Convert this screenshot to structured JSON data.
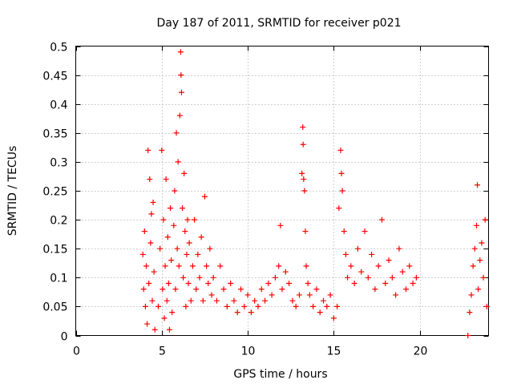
{
  "chart_data": {
    "type": "scatter",
    "title": "Day 187 of 2011, SRMTID for receiver p021",
    "xlabel": "GPS time / hours",
    "ylabel": "SRMTID / TECUs",
    "xlim": [
      0,
      24
    ],
    "ylim": [
      0,
      0.5
    ],
    "x_ticks": [
      0,
      5,
      10,
      15,
      20
    ],
    "y_ticks": [
      0,
      0.05,
      0.1,
      0.15,
      0.2,
      0.25,
      0.3,
      0.35,
      0.4,
      0.45,
      0.5
    ],
    "grid": true,
    "legend": "none",
    "marker": "plus",
    "series": [
      {
        "color": "#ff0000",
        "points": [
          [
            3.9,
            0.14
          ],
          [
            3.95,
            0.08
          ],
          [
            4.0,
            0.18
          ],
          [
            4.05,
            0.05
          ],
          [
            4.1,
            0.12
          ],
          [
            4.15,
            0.02
          ],
          [
            4.2,
            0.32
          ],
          [
            4.25,
            0.09
          ],
          [
            4.3,
            0.27
          ],
          [
            4.35,
            0.16
          ],
          [
            4.4,
            0.21
          ],
          [
            4.45,
            0.06
          ],
          [
            4.5,
            0.23
          ],
          [
            4.55,
            0.11
          ],
          [
            4.6,
            0.01
          ],
          [
            4.8,
            0.05
          ],
          [
            4.9,
            0.15
          ],
          [
            5.0,
            0.32
          ],
          [
            5.05,
            0.08
          ],
          [
            5.1,
            0.2
          ],
          [
            5.15,
            0.03
          ],
          [
            5.2,
            0.12
          ],
          [
            5.25,
            0.27
          ],
          [
            5.3,
            0.06
          ],
          [
            5.35,
            0.17
          ],
          [
            5.4,
            0.09
          ],
          [
            5.45,
            0.01
          ],
          [
            5.5,
            0.22
          ],
          [
            5.55,
            0.13
          ],
          [
            5.6,
            0.04
          ],
          [
            5.7,
            0.19
          ],
          [
            5.75,
            0.25
          ],
          [
            5.8,
            0.08
          ],
          [
            5.85,
            0.35
          ],
          [
            5.9,
            0.15
          ],
          [
            5.95,
            0.3
          ],
          [
            6.0,
            0.12
          ],
          [
            6.05,
            0.38
          ],
          [
            6.1,
            0.49
          ],
          [
            6.12,
            0.45
          ],
          [
            6.15,
            0.42
          ],
          [
            6.2,
            0.22
          ],
          [
            6.25,
            0.1
          ],
          [
            6.3,
            0.28
          ],
          [
            6.35,
            0.18
          ],
          [
            6.4,
            0.05
          ],
          [
            6.45,
            0.14
          ],
          [
            6.5,
            0.2
          ],
          [
            6.55,
            0.09
          ],
          [
            6.6,
            0.16
          ],
          [
            6.7,
            0.06
          ],
          [
            6.8,
            0.12
          ],
          [
            6.9,
            0.2
          ],
          [
            7.0,
            0.08
          ],
          [
            7.1,
            0.14
          ],
          [
            7.2,
            0.1
          ],
          [
            7.3,
            0.17
          ],
          [
            7.4,
            0.06
          ],
          [
            7.5,
            0.24
          ],
          [
            7.6,
            0.12
          ],
          [
            7.7,
            0.09
          ],
          [
            7.8,
            0.15
          ],
          [
            7.9,
            0.07
          ],
          [
            8.0,
            0.1
          ],
          [
            8.2,
            0.06
          ],
          [
            8.4,
            0.12
          ],
          [
            8.6,
            0.08
          ],
          [
            8.8,
            0.05
          ],
          [
            9.0,
            0.09
          ],
          [
            9.2,
            0.06
          ],
          [
            9.4,
            0.04
          ],
          [
            9.6,
            0.08
          ],
          [
            9.8,
            0.05
          ],
          [
            10.0,
            0.07
          ],
          [
            10.2,
            0.04
          ],
          [
            10.4,
            0.06
          ],
          [
            10.6,
            0.05
          ],
          [
            10.8,
            0.08
          ],
          [
            11.0,
            0.06
          ],
          [
            11.2,
            0.09
          ],
          [
            11.4,
            0.07
          ],
          [
            11.6,
            0.1
          ],
          [
            11.8,
            0.12
          ],
          [
            11.9,
            0.19
          ],
          [
            12.0,
            0.08
          ],
          [
            12.2,
            0.11
          ],
          [
            12.4,
            0.09
          ],
          [
            12.6,
            0.06
          ],
          [
            12.8,
            0.05
          ],
          [
            13.0,
            0.07
          ],
          [
            13.15,
            0.28
          ],
          [
            13.2,
            0.36
          ],
          [
            13.22,
            0.33
          ],
          [
            13.25,
            0.27
          ],
          [
            13.3,
            0.25
          ],
          [
            13.35,
            0.18
          ],
          [
            13.4,
            0.12
          ],
          [
            13.5,
            0.09
          ],
          [
            13.6,
            0.07
          ],
          [
            13.8,
            0.05
          ],
          [
            14.0,
            0.08
          ],
          [
            14.2,
            0.04
          ],
          [
            14.4,
            0.06
          ],
          [
            14.6,
            0.05
          ],
          [
            14.8,
            0.07
          ],
          [
            15.0,
            0.03
          ],
          [
            15.2,
            0.05
          ],
          [
            15.3,
            0.22
          ],
          [
            15.4,
            0.32
          ],
          [
            15.45,
            0.28
          ],
          [
            15.5,
            0.25
          ],
          [
            15.6,
            0.18
          ],
          [
            15.7,
            0.14
          ],
          [
            15.8,
            0.1
          ],
          [
            16.0,
            0.12
          ],
          [
            16.2,
            0.09
          ],
          [
            16.4,
            0.15
          ],
          [
            16.6,
            0.11
          ],
          [
            16.8,
            0.18
          ],
          [
            17.0,
            0.1
          ],
          [
            17.2,
            0.14
          ],
          [
            17.4,
            0.08
          ],
          [
            17.6,
            0.12
          ],
          [
            17.8,
            0.2
          ],
          [
            18.0,
            0.09
          ],
          [
            18.2,
            0.13
          ],
          [
            18.4,
            0.1
          ],
          [
            18.6,
            0.07
          ],
          [
            18.8,
            0.15
          ],
          [
            19.0,
            0.11
          ],
          [
            19.2,
            0.08
          ],
          [
            19.4,
            0.12
          ],
          [
            19.6,
            0.09
          ],
          [
            19.8,
            0.1
          ],
          [
            22.8,
            0.0
          ],
          [
            22.9,
            0.04
          ],
          [
            23.0,
            0.07
          ],
          [
            23.1,
            0.12
          ],
          [
            23.2,
            0.15
          ],
          [
            23.3,
            0.19
          ],
          [
            23.35,
            0.26
          ],
          [
            23.4,
            0.08
          ],
          [
            23.5,
            0.13
          ],
          [
            23.6,
            0.16
          ],
          [
            23.7,
            0.1
          ],
          [
            23.8,
            0.2
          ],
          [
            23.9,
            0.05
          ]
        ]
      }
    ]
  }
}
